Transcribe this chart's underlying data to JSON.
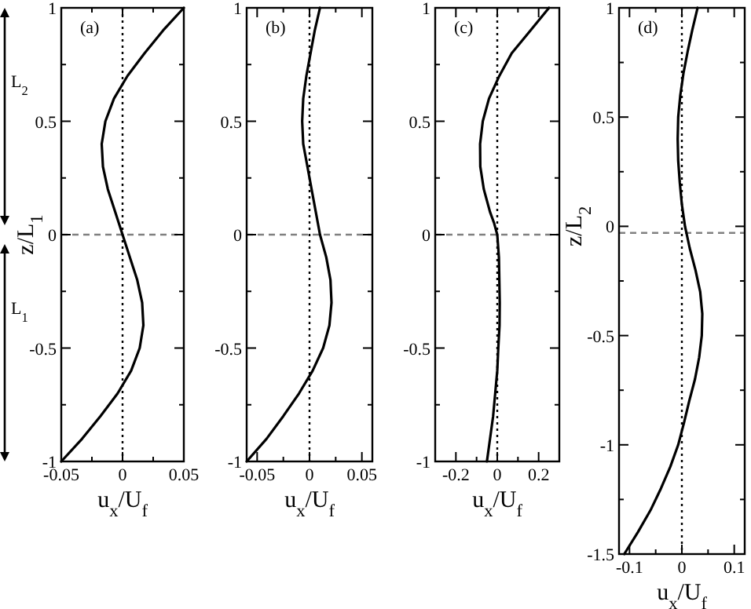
{
  "chart_data": [
    {
      "type": "line",
      "xlabel": "u$_{x}$/U$_{f}$",
      "ylabel": "z/L$_{1}$",
      "annotations": [
        "(a)",
        "L$_{2}$",
        "L$_{1}$"
      ],
      "xlim": [
        -0.05,
        0.05
      ],
      "xticks": [
        -0.05,
        {
          "value": -0.025,
          "label": null
        },
        0,
        {
          "value": 0.025,
          "label": null
        },
        0.05
      ],
      "ylim": [
        -1,
        1
      ],
      "yticks": [
        -1,
        {
          "value": -0.75,
          "label": null
        },
        -0.5,
        {
          "value": -0.25,
          "label": null
        },
        0,
        {
          "value": 0.25,
          "label": null
        },
        0.5,
        {
          "value": 0.75,
          "label": null
        },
        1
      ],
      "ref_lines": [
        {
          "axis": "x",
          "value": 0,
          "line_style": "dotted",
          "color": "#000000"
        },
        {
          "axis": "y",
          "value": 0,
          "line_style": "dashed",
          "color": "#808080"
        }
      ],
      "series": [
        {
          "color": "#000000",
          "x": [
            0.05,
            0.033,
            0.018,
            0.004,
            -0.007,
            -0.014,
            -0.017,
            -0.016,
            -0.012,
            -0.006,
            0,
            0.006,
            0.012,
            0.016,
            0.017,
            0.014,
            0.007,
            -0.004,
            -0.018,
            -0.033,
            -0.05
          ],
          "values": [
            1,
            0.9,
            0.8,
            0.7,
            0.6,
            0.5,
            0.4,
            0.3,
            0.2,
            0.1,
            0,
            -0.1,
            -0.2,
            -0.3,
            -0.4,
            -0.5,
            -0.6,
            -0.7,
            -0.8,
            -0.9,
            -1
          ]
        }
      ]
    },
    {
      "type": "line",
      "xlabel": "u$_{x}$/U$_{f}$",
      "annotations": [
        "(b)"
      ],
      "xlim": [
        -0.06,
        0.06
      ],
      "xticks": [
        -0.05,
        {
          "value": -0.025,
          "label": null
        },
        0,
        {
          "value": 0.025,
          "label": null
        },
        0.05
      ],
      "ylim": [
        -1,
        1
      ],
      "yticks": [
        -1,
        {
          "value": -0.75,
          "label": null
        },
        -0.5,
        {
          "value": -0.25,
          "label": null
        },
        0,
        {
          "value": 0.25,
          "label": null
        },
        0.5,
        {
          "value": 0.75,
          "label": null
        },
        1
      ],
      "ref_lines": [
        {
          "axis": "x",
          "value": 0,
          "line_style": "dotted",
          "color": "#000000"
        },
        {
          "axis": "y",
          "value": 0,
          "line_style": "dashed",
          "color": "#808080"
        }
      ],
      "series": [
        {
          "color": "#000000",
          "x": [
            0.01,
            0.005,
            0.001,
            -0.003,
            -0.006,
            -0.007,
            -0.006,
            -0.002,
            0.002,
            0.006,
            0.01,
            0.016,
            0.02,
            0.021,
            0.019,
            0.013,
            0.003,
            -0.01,
            -0.025,
            -0.041,
            -0.06
          ],
          "values": [
            1,
            0.9,
            0.8,
            0.7,
            0.6,
            0.5,
            0.4,
            0.3,
            0.2,
            0.1,
            0,
            -0.1,
            -0.2,
            -0.3,
            -0.4,
            -0.5,
            -0.6,
            -0.7,
            -0.8,
            -0.9,
            -1
          ]
        }
      ]
    },
    {
      "type": "line",
      "xlabel": "u$_{x}$/U$_{f}$",
      "annotations": [
        "(c)"
      ],
      "xlim": [
        -0.3,
        0.3
      ],
      "xticks": [
        -0.2,
        {
          "value": -0.1,
          "label": null
        },
        0,
        {
          "value": 0.1,
          "label": null
        },
        0.2
      ],
      "ylim": [
        -1,
        1
      ],
      "yticks": [
        -1,
        {
          "value": -0.75,
          "label": null
        },
        -0.5,
        {
          "value": -0.25,
          "label": null
        },
        0,
        {
          "value": 0.25,
          "label": null
        },
        0.5,
        {
          "value": 0.75,
          "label": null
        },
        1
      ],
      "ref_lines": [
        {
          "axis": "x",
          "value": 0,
          "line_style": "dotted",
          "color": "#000000"
        },
        {
          "axis": "y",
          "value": 0,
          "line_style": "dashed",
          "color": "#808080"
        }
      ],
      "series": [
        {
          "color": "#000000",
          "x": [
            0.25,
            0.16,
            0.07,
            0.01,
            -0.04,
            -0.07,
            -0.083,
            -0.082,
            -0.065,
            -0.035,
            -0.015,
            0,
            0.008,
            0.012,
            0.011,
            0.005,
            0,
            -0.01,
            -0.02,
            -0.035,
            -0.05
          ],
          "values": [
            1,
            0.9,
            0.8,
            0.7,
            0.6,
            0.5,
            0.4,
            0.3,
            0.2,
            0.1,
            0.05,
            0,
            -0.1,
            -0.3,
            -0.4,
            -0.5,
            -0.6,
            -0.7,
            -0.8,
            -0.9,
            -1
          ]
        }
      ]
    },
    {
      "type": "line",
      "xlabel": "u$_{x}$/U$_{f}$",
      "ylabel": "z/L$_{2}$",
      "annotations": [
        "(d)"
      ],
      "xlim": [
        -0.12,
        0.12
      ],
      "xticks": [
        -0.1,
        {
          "value": -0.05,
          "label": null
        },
        0,
        {
          "value": 0.05,
          "label": null
        },
        0.1
      ],
      "ylim": [
        -1.5,
        1
      ],
      "yticks": [
        -1.5,
        {
          "value": -1.25,
          "label": null
        },
        -1,
        {
          "value": -0.75,
          "label": null
        },
        -0.5,
        {
          "value": -0.25,
          "label": null
        },
        0,
        {
          "value": 0.25,
          "label": null
        },
        0.5,
        {
          "value": 0.75,
          "label": null
        },
        1
      ],
      "ref_lines": [
        {
          "axis": "x",
          "value": 0,
          "line_style": "dotted",
          "color": "#000000"
        },
        {
          "axis": "y",
          "value": -0.03,
          "line_style": "dashed",
          "color": "#808080"
        }
      ],
      "series": [
        {
          "color": "#000000",
          "x": [
            0.03,
            0.02,
            0.011,
            0.003,
            -0.003,
            -0.007,
            -0.008,
            -0.007,
            -0.004,
            0,
            0.006,
            0.015,
            0.026,
            0.035,
            0.039,
            0.038,
            0.033,
            0.025,
            0.014,
            0.004,
            -0.007,
            -0.022,
            -0.04,
            -0.06,
            -0.084,
            -0.11
          ],
          "values": [
            1,
            0.9,
            0.8,
            0.7,
            0.6,
            0.5,
            0.4,
            0.3,
            0.2,
            0.1,
            0,
            -0.1,
            -0.2,
            -0.3,
            -0.4,
            -0.5,
            -0.6,
            -0.7,
            -0.8,
            -0.9,
            -1,
            -1.1,
            -1.2,
            -1.3,
            -1.4,
            -1.5
          ]
        }
      ]
    }
  ]
}
